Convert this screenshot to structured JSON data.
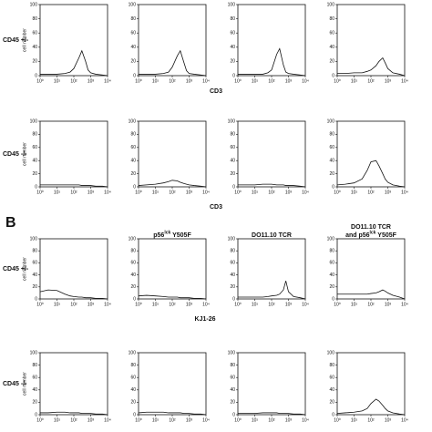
{
  "figure": {
    "panel_label": "B",
    "row_labels": [
      "CD45 +/-",
      "CD45 -/-",
      "CD45 +/-",
      "CD45 -/-"
    ],
    "x_captions": [
      "CD3",
      "CD3",
      "KJ1-26"
    ],
    "column_headers": [
      [
        [
          "p56",
          "lck",
          " Y505F"
        ]
      ],
      [
        [
          "DO11.10 TCR"
        ]
      ],
      [
        [
          "DO11.10 TCR"
        ],
        [
          "and p56",
          "lck",
          " Y505F"
        ]
      ]
    ]
  },
  "chart_data": [
    {
      "type": "line",
      "ylabel": "cell number",
      "xscale": "log",
      "x": [
        1,
        3,
        10,
        30,
        60,
        100,
        200,
        300,
        500,
        700,
        1000,
        2000,
        5000,
        10000
      ],
      "series": [
        {
          "color": "#111",
          "values": [
            2,
            2,
            2,
            3,
            5,
            10,
            25,
            35,
            20,
            8,
            4,
            2,
            1,
            0
          ]
        }
      ],
      "xlim": [
        1,
        10000
      ],
      "ylim": [
        0,
        100
      ],
      "yticks": [
        0,
        20,
        40,
        60,
        80,
        100
      ],
      "xticks": [
        {
          "value": 1,
          "label": "10⁰"
        },
        {
          "value": 10,
          "label": "10¹"
        },
        {
          "value": 100,
          "label": "10²"
        },
        {
          "value": 1000,
          "label": "10³"
        },
        {
          "value": 10000,
          "label": "10⁴"
        }
      ]
    },
    {
      "type": "line",
      "xscale": "log",
      "x": [
        1,
        3,
        10,
        30,
        60,
        100,
        200,
        300,
        500,
        700,
        1000,
        2000,
        5000,
        10000
      ],
      "series": [
        {
          "color": "#111",
          "values": [
            2,
            2,
            2,
            3,
            5,
            12,
            28,
            35,
            18,
            7,
            3,
            2,
            1,
            0
          ]
        }
      ],
      "xlim": [
        1,
        10000
      ],
      "ylim": [
        0,
        100
      ],
      "yticks": [
        0,
        20,
        40,
        60,
        80,
        100
      ],
      "xticks": [
        {
          "value": 1,
          "label": "10⁰"
        },
        {
          "value": 10,
          "label": "10¹"
        },
        {
          "value": 100,
          "label": "10²"
        },
        {
          "value": 1000,
          "label": "10³"
        },
        {
          "value": 10000,
          "label": "10⁴"
        }
      ]
    },
    {
      "type": "line",
      "xscale": "log",
      "x": [
        1,
        3,
        10,
        30,
        60,
        100,
        200,
        300,
        500,
        700,
        1000,
        2000,
        5000,
        10000
      ],
      "series": [
        {
          "color": "#111",
          "values": [
            2,
            2,
            2,
            2,
            4,
            8,
            30,
            38,
            15,
            5,
            3,
            2,
            1,
            0
          ]
        }
      ],
      "xlim": [
        1,
        10000
      ],
      "ylim": [
        0,
        100
      ],
      "yticks": [
        0,
        20,
        40,
        60,
        80,
        100
      ],
      "xticks": [
        {
          "value": 1,
          "label": "10⁰"
        },
        {
          "value": 10,
          "label": "10¹"
        },
        {
          "value": 100,
          "label": "10²"
        },
        {
          "value": 1000,
          "label": "10³"
        },
        {
          "value": 10000,
          "label": "10⁴"
        }
      ]
    },
    {
      "type": "line",
      "xscale": "log",
      "x": [
        1,
        3,
        10,
        30,
        60,
        100,
        200,
        300,
        500,
        700,
        1000,
        2000,
        5000,
        10000
      ],
      "series": [
        {
          "color": "#111",
          "values": [
            3,
            3,
            4,
            4,
            6,
            8,
            14,
            20,
            25,
            18,
            10,
            4,
            2,
            0
          ]
        }
      ],
      "xlim": [
        1,
        10000
      ],
      "ylim": [
        0,
        100
      ],
      "yticks": [
        0,
        20,
        40,
        60,
        80,
        100
      ],
      "xticks": [
        {
          "value": 1,
          "label": "10⁰"
        },
        {
          "value": 10,
          "label": "10¹"
        },
        {
          "value": 100,
          "label": "10²"
        },
        {
          "value": 1000,
          "label": "10³"
        },
        {
          "value": 10000,
          "label": "10⁴"
        }
      ]
    },
    {
      "type": "line",
      "ylabel": "cell number",
      "xscale": "log",
      "x": [
        1,
        3,
        10,
        30,
        60,
        100,
        200,
        300,
        500,
        700,
        1000,
        2000,
        5000,
        10000
      ],
      "series": [
        {
          "color": "#111",
          "values": [
            3,
            3,
            3,
            3,
            3,
            3,
            3,
            2,
            2,
            2,
            2,
            1,
            1,
            0
          ]
        }
      ],
      "xlim": [
        1,
        10000
      ],
      "ylim": [
        0,
        100
      ],
      "yticks": [
        0,
        20,
        40,
        60,
        80,
        100
      ],
      "xticks": [
        {
          "value": 1,
          "label": "10⁰"
        },
        {
          "value": 10,
          "label": "10¹"
        },
        {
          "value": 100,
          "label": "10²"
        },
        {
          "value": 1000,
          "label": "10³"
        },
        {
          "value": 10000,
          "label": "10⁴"
        }
      ]
    },
    {
      "type": "line",
      "xscale": "log",
      "x": [
        1,
        3,
        10,
        30,
        60,
        100,
        200,
        300,
        500,
        700,
        1000,
        2000,
        5000,
        10000
      ],
      "series": [
        {
          "color": "#111",
          "values": [
            2,
            3,
            4,
            6,
            8,
            10,
            9,
            7,
            5,
            4,
            3,
            2,
            1,
            0
          ]
        }
      ],
      "xlim": [
        1,
        10000
      ],
      "ylim": [
        0,
        100
      ],
      "yticks": [
        0,
        20,
        40,
        60,
        80,
        100
      ],
      "xticks": [
        {
          "value": 1,
          "label": "10⁰"
        },
        {
          "value": 10,
          "label": "10¹"
        },
        {
          "value": 100,
          "label": "10²"
        },
        {
          "value": 1000,
          "label": "10³"
        },
        {
          "value": 10000,
          "label": "10⁴"
        }
      ]
    },
    {
      "type": "line",
      "xscale": "log",
      "x": [
        1,
        3,
        10,
        30,
        60,
        100,
        200,
        300,
        500,
        700,
        1000,
        2000,
        5000,
        10000
      ],
      "series": [
        {
          "color": "#111",
          "values": [
            3,
            3,
            3,
            4,
            4,
            4,
            3,
            3,
            3,
            2,
            2,
            2,
            1,
            0
          ]
        }
      ],
      "xlim": [
        1,
        10000
      ],
      "ylim": [
        0,
        100
      ],
      "yticks": [
        0,
        20,
        40,
        60,
        80,
        100
      ],
      "xticks": [
        {
          "value": 1,
          "label": "10⁰"
        },
        {
          "value": 10,
          "label": "10¹"
        },
        {
          "value": 100,
          "label": "10²"
        },
        {
          "value": 1000,
          "label": "10³"
        },
        {
          "value": 10000,
          "label": "10⁴"
        }
      ]
    },
    {
      "type": "line",
      "xscale": "log",
      "x": [
        1,
        3,
        10,
        30,
        60,
        100,
        200,
        300,
        500,
        700,
        1000,
        2000,
        5000,
        10000
      ],
      "series": [
        {
          "color": "#111",
          "values": [
            3,
            4,
            6,
            12,
            25,
            38,
            40,
            32,
            20,
            12,
            7,
            3,
            1,
            0
          ]
        }
      ],
      "xlim": [
        1,
        10000
      ],
      "ylim": [
        0,
        100
      ],
      "yticks": [
        0,
        20,
        40,
        60,
        80,
        100
      ],
      "xticks": [
        {
          "value": 1,
          "label": "10⁰"
        },
        {
          "value": 10,
          "label": "10¹"
        },
        {
          "value": 100,
          "label": "10²"
        },
        {
          "value": 1000,
          "label": "10³"
        },
        {
          "value": 10000,
          "label": "10⁴"
        }
      ]
    },
    {
      "type": "line",
      "ylabel": "cell number",
      "xscale": "log",
      "x": [
        1,
        3,
        10,
        30,
        60,
        100,
        200,
        300,
        500,
        700,
        1000,
        2000,
        5000,
        10000
      ],
      "series": [
        {
          "color": "#111",
          "values": [
            12,
            15,
            14,
            8,
            5,
            4,
            3,
            3,
            2,
            2,
            2,
            1,
            1,
            0
          ]
        }
      ],
      "xlim": [
        1,
        10000
      ],
      "ylim": [
        0,
        100
      ],
      "yticks": [
        0,
        20,
        40,
        60,
        80,
        100
      ],
      "xticks": [
        {
          "value": 1,
          "label": "10⁰"
        },
        {
          "value": 10,
          "label": "10¹"
        },
        {
          "value": 100,
          "label": "10²"
        },
        {
          "value": 1000,
          "label": "10³"
        },
        {
          "value": 10000,
          "label": "10⁴"
        }
      ]
    },
    {
      "type": "line",
      "xscale": "log",
      "x": [
        1,
        3,
        10,
        30,
        60,
        100,
        200,
        300,
        500,
        700,
        1000,
        2000,
        5000,
        10000
      ],
      "series": [
        {
          "color": "#111",
          "values": [
            5,
            6,
            5,
            4,
            3,
            3,
            3,
            2,
            2,
            2,
            2,
            1,
            1,
            0
          ]
        }
      ],
      "xlim": [
        1,
        10000
      ],
      "ylim": [
        0,
        100
      ],
      "yticks": [
        0,
        20,
        40,
        60,
        80,
        100
      ],
      "xticks": [
        {
          "value": 1,
          "label": "10⁰"
        },
        {
          "value": 10,
          "label": "10¹"
        },
        {
          "value": 100,
          "label": "10²"
        },
        {
          "value": 1000,
          "label": "10³"
        },
        {
          "value": 10000,
          "label": "10⁴"
        }
      ]
    },
    {
      "type": "line",
      "xscale": "log",
      "x": [
        1,
        3,
        10,
        30,
        60,
        100,
        200,
        300,
        500,
        700,
        1000,
        2000,
        5000,
        10000
      ],
      "series": [
        {
          "color": "#111",
          "values": [
            3,
            3,
            3,
            3,
            4,
            5,
            6,
            8,
            15,
            30,
            12,
            4,
            2,
            0
          ]
        }
      ],
      "xlim": [
        1,
        10000
      ],
      "ylim": [
        0,
        100
      ],
      "yticks": [
        0,
        20,
        40,
        60,
        80,
        100
      ],
      "xticks": [
        {
          "value": 1,
          "label": "10⁰"
        },
        {
          "value": 10,
          "label": "10¹"
        },
        {
          "value": 100,
          "label": "10²"
        },
        {
          "value": 1000,
          "label": "10³"
        },
        {
          "value": 10000,
          "label": "10⁴"
        }
      ]
    },
    {
      "type": "line",
      "xscale": "log",
      "x": [
        1,
        3,
        10,
        30,
        60,
        100,
        200,
        300,
        500,
        700,
        1000,
        2000,
        5000,
        10000
      ],
      "series": [
        {
          "color": "#111",
          "values": [
            8,
            8,
            8,
            8,
            8,
            9,
            10,
            12,
            15,
            13,
            10,
            6,
            3,
            0
          ]
        }
      ],
      "xlim": [
        1,
        10000
      ],
      "ylim": [
        0,
        100
      ],
      "yticks": [
        0,
        20,
        40,
        60,
        80,
        100
      ],
      "xticks": [
        {
          "value": 1,
          "label": "10⁰"
        },
        {
          "value": 10,
          "label": "10¹"
        },
        {
          "value": 100,
          "label": "10²"
        },
        {
          "value": 1000,
          "label": "10³"
        },
        {
          "value": 10000,
          "label": "10⁴"
        }
      ]
    },
    {
      "type": "line",
      "ylabel": "cell number",
      "xscale": "log",
      "x": [
        1,
        3,
        10,
        30,
        60,
        100,
        200,
        300,
        500,
        700,
        1000,
        2000,
        5000,
        10000
      ],
      "series": [
        {
          "color": "#111",
          "values": [
            3,
            3,
            4,
            4,
            3,
            3,
            3,
            2,
            2,
            2,
            2,
            1,
            1,
            0
          ]
        }
      ],
      "xlim": [
        1,
        10000
      ],
      "ylim": [
        0,
        100
      ],
      "yticks": [
        0,
        20,
        40,
        60,
        80,
        100
      ],
      "xticks": [
        {
          "value": 1,
          "label": "10⁰"
        },
        {
          "value": 10,
          "label": "10¹"
        },
        {
          "value": 100,
          "label": "10²"
        },
        {
          "value": 1000,
          "label": "10³"
        },
        {
          "value": 10000,
          "label": "10⁴"
        }
      ]
    },
    {
      "type": "line",
      "xscale": "log",
      "x": [
        1,
        3,
        10,
        30,
        60,
        100,
        200,
        300,
        500,
        700,
        1000,
        2000,
        5000,
        10000
      ],
      "series": [
        {
          "color": "#111",
          "values": [
            3,
            4,
            4,
            4,
            3,
            3,
            3,
            3,
            2,
            2,
            2,
            1,
            1,
            0
          ]
        }
      ],
      "xlim": [
        1,
        10000
      ],
      "ylim": [
        0,
        100
      ],
      "yticks": [
        0,
        20,
        40,
        60,
        80,
        100
      ],
      "xticks": [
        {
          "value": 1,
          "label": "10⁰"
        },
        {
          "value": 10,
          "label": "10¹"
        },
        {
          "value": 100,
          "label": "10²"
        },
        {
          "value": 1000,
          "label": "10³"
        },
        {
          "value": 10000,
          "label": "10⁴"
        }
      ]
    },
    {
      "type": "line",
      "xscale": "log",
      "x": [
        1,
        3,
        10,
        30,
        60,
        100,
        200,
        300,
        500,
        700,
        1000,
        2000,
        5000,
        10000
      ],
      "series": [
        {
          "color": "#111",
          "values": [
            2,
            2,
            2,
            3,
            3,
            3,
            3,
            2,
            2,
            2,
            2,
            1,
            1,
            0
          ]
        }
      ],
      "xlim": [
        1,
        10000
      ],
      "ylim": [
        0,
        100
      ],
      "yticks": [
        0,
        20,
        40,
        60,
        80,
        100
      ],
      "xticks": [
        {
          "value": 1,
          "label": "10⁰"
        },
        {
          "value": 10,
          "label": "10¹"
        },
        {
          "value": 100,
          "label": "10²"
        },
        {
          "value": 1000,
          "label": "10³"
        },
        {
          "value": 10000,
          "label": "10⁴"
        }
      ]
    },
    {
      "type": "line",
      "xscale": "log",
      "x": [
        1,
        3,
        10,
        30,
        60,
        100,
        200,
        300,
        500,
        700,
        1000,
        2000,
        5000,
        10000
      ],
      "series": [
        {
          "color": "#111",
          "values": [
            2,
            3,
            4,
            6,
            10,
            18,
            25,
            22,
            15,
            10,
            6,
            3,
            1,
            0
          ]
        }
      ],
      "xlim": [
        1,
        10000
      ],
      "ylim": [
        0,
        100
      ],
      "yticks": [
        0,
        20,
        40,
        60,
        80,
        100
      ],
      "xticks": [
        {
          "value": 1,
          "label": "10⁰"
        },
        {
          "value": 10,
          "label": "10¹"
        },
        {
          "value": 100,
          "label": "10²"
        },
        {
          "value": 1000,
          "label": "10³"
        },
        {
          "value": 10000,
          "label": "10⁴"
        }
      ]
    }
  ]
}
